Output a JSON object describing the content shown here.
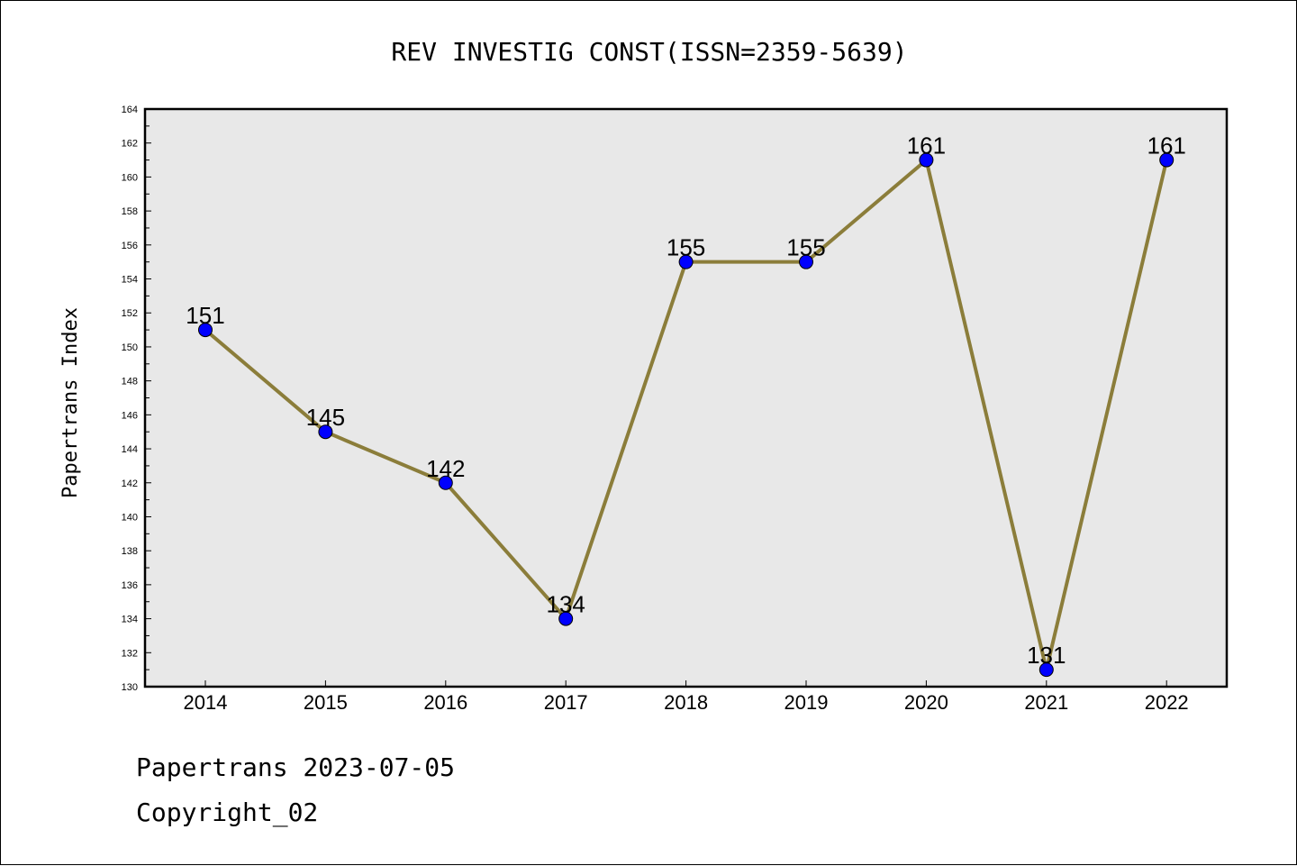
{
  "chart_data": {
    "type": "line",
    "title": "REV INVESTIG CONST(ISSN=2359-5639)",
    "ylabel": "Papertrans Index",
    "xlabel": "",
    "categories": [
      "2014",
      "2015",
      "2016",
      "2017",
      "2018",
      "2019",
      "2020",
      "2021",
      "2022"
    ],
    "series": [
      {
        "values": [
          151,
          145,
          142,
          134,
          155,
          155,
          161,
          131,
          161
        ]
      }
    ],
    "data_labels": [
      "151",
      "145",
      "142",
      "134",
      "155",
      "155",
      "161",
      "131",
      "161"
    ],
    "ylim": [
      130,
      164
    ],
    "yticks": [
      "130",
      "132",
      "134",
      "136",
      "138",
      "140",
      "142",
      "144",
      "146",
      "148",
      "150",
      "152",
      "154",
      "156",
      "158",
      "160",
      "162",
      "164"
    ],
    "grid": false,
    "legend": "none",
    "colors": {
      "line": "#8b7d3a",
      "marker": "#0000ff",
      "plot_background": "#e8e8e8"
    }
  },
  "footer": {
    "date_line": "Papertrans 2023-07-05",
    "copyright": "Copyright_02"
  }
}
